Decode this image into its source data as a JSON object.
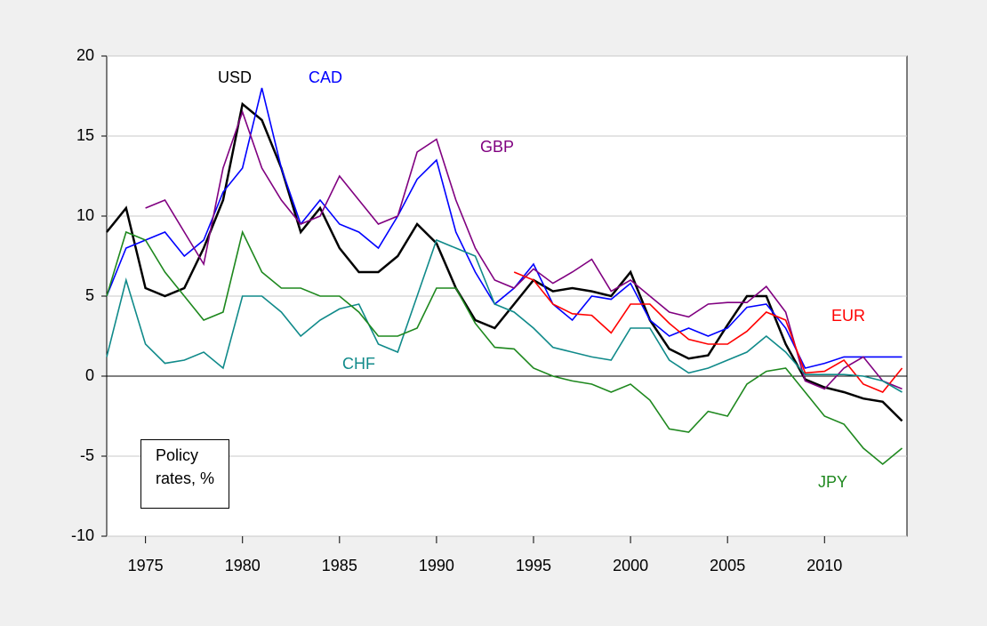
{
  "chart_data": {
    "type": "line",
    "annotation": "Policy rates, %",
    "x": [
      1973,
      1974,
      1975,
      1976,
      1977,
      1978,
      1979,
      1980,
      1981,
      1982,
      1983,
      1984,
      1985,
      1986,
      1987,
      1988,
      1989,
      1990,
      1991,
      1992,
      1993,
      1994,
      1995,
      1996,
      1997,
      1998,
      1999,
      2000,
      2001,
      2002,
      2003,
      2004,
      2005,
      2006,
      2007,
      2008,
      2009,
      2010,
      2011,
      2012,
      2013,
      2014
    ],
    "xlim": [
      1973,
      2014.25
    ],
    "xticks": [
      1975,
      1980,
      1985,
      1990,
      1995,
      2000,
      2005,
      2010
    ],
    "ylim": [
      -10,
      20
    ],
    "yticks": [
      -10,
      -5,
      0,
      5,
      10,
      15,
      20
    ],
    "grid": true,
    "series": [
      {
        "name": "USD",
        "color": "#000000",
        "values": [
          9,
          10.5,
          5.5,
          5,
          5.5,
          8,
          11,
          17,
          16,
          13,
          9,
          10.5,
          8,
          6.5,
          6.5,
          7.5,
          9.5,
          8.3,
          5.5,
          3.5,
          3,
          4.5,
          6,
          5.3,
          5.5,
          5.3,
          5,
          6.5,
          3.5,
          1.7,
          1.1,
          1.3,
          3.2,
          5,
          5,
          2,
          -0.2,
          -0.7,
          -1,
          -1.4,
          -1.6,
          -2.8
        ]
      },
      {
        "name": "CAD",
        "color": "#0000ff",
        "values": [
          5,
          8,
          8.5,
          9,
          7.5,
          8.5,
          11.5,
          13,
          18,
          13,
          9.5,
          11,
          9.5,
          9,
          8,
          10,
          12.3,
          13.5,
          9,
          6.5,
          4.5,
          5.5,
          7,
          4.5,
          3.5,
          5,
          4.8,
          5.8,
          3.5,
          2.5,
          3,
          2.5,
          3,
          4.3,
          4.5,
          3,
          0.5,
          0.8,
          1.2,
          1.2,
          1.2,
          1.2
        ]
      },
      {
        "name": "GBP",
        "color": "#800080",
        "values": [
          null,
          null,
          10.5,
          11,
          9,
          7,
          13,
          16.5,
          13,
          11,
          9.5,
          10,
          12.5,
          11,
          9.5,
          10,
          14,
          14.8,
          11,
          8,
          6,
          5.5,
          6.7,
          5.8,
          6.5,
          7.3,
          5.3,
          6,
          5,
          4,
          3.7,
          4.5,
          4.6,
          4.6,
          5.6,
          4,
          -0.3,
          -0.8,
          0.5,
          1.2,
          -0.3,
          -0.8
        ]
      },
      {
        "name": "EUR",
        "color": "#ff0000",
        "values": [
          null,
          null,
          null,
          null,
          null,
          null,
          null,
          null,
          null,
          null,
          null,
          null,
          null,
          null,
          null,
          null,
          null,
          null,
          null,
          null,
          null,
          6.5,
          6,
          4.5,
          3.9,
          3.8,
          2.7,
          4.5,
          4.5,
          3.3,
          2.3,
          2,
          2,
          2.8,
          4,
          3.5,
          0.2,
          0.3,
          1,
          -0.5,
          -1,
          0.5
        ]
      },
      {
        "name": "CHF",
        "color": "#108a8a",
        "values": [
          1.2,
          6,
          2,
          0.8,
          1,
          1.5,
          0.5,
          5,
          5,
          4,
          2.5,
          3.5,
          4.2,
          4.5,
          2,
          1.5,
          5,
          8.5,
          8,
          7.5,
          4.5,
          4,
          3,
          1.8,
          1.5,
          1.2,
          1,
          3,
          3,
          1,
          0.2,
          0.5,
          1,
          1.5,
          2.5,
          1.5,
          0.1,
          0.1,
          0.1,
          0,
          -0.3,
          -1
        ]
      },
      {
        "name": "JPY",
        "color": "#1e881e",
        "values": [
          5,
          9,
          8.5,
          6.5,
          5,
          3.5,
          4,
          9,
          6.5,
          5.5,
          5.5,
          5,
          5,
          4,
          2.5,
          2.5,
          3,
          5.5,
          5.5,
          3.3,
          1.8,
          1.7,
          0.5,
          0,
          -0.3,
          -0.5,
          -1,
          -0.5,
          -1.5,
          -3.3,
          -3.5,
          -2.2,
          -2.5,
          -0.5,
          0.3,
          0.5,
          -1,
          -2.5,
          -3,
          -4.5,
          -5.5,
          -4.5
        ]
      }
    ]
  }
}
